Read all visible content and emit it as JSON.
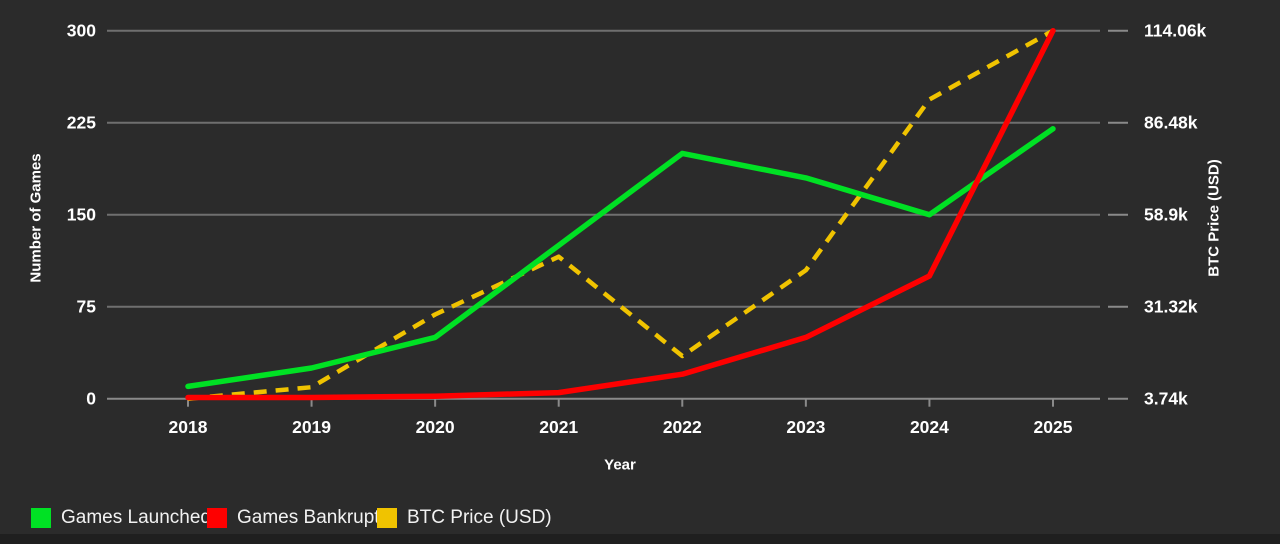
{
  "colors": {
    "background": "#2b2b2b",
    "bottom_strip": "#1f1f1f",
    "grid": "#6f6f6f",
    "axis_line": "#8a8a8a",
    "tick": "#8a8a8a",
    "text": "#ffffff",
    "legend_text": "#f2f2f2",
    "green": "#00e124",
    "red": "#fe0000",
    "gold": "#f0c300"
  },
  "chart_data": {
    "type": "line",
    "title": "",
    "x_categories": [
      "2018",
      "2019",
      "2020",
      "2021",
      "2022",
      "2023",
      "2024",
      "2025"
    ],
    "series": [
      {
        "name": "Games Launched",
        "axis": "left",
        "color": "#00e124",
        "line_style": "solid",
        "values": [
          10,
          25,
          50,
          125,
          200,
          180,
          150,
          220
        ]
      },
      {
        "name": "Games Bankrupt",
        "axis": "left",
        "color": "#fe0000",
        "line_style": "solid",
        "values": [
          1,
          1,
          2,
          5,
          20,
          50,
          100,
          300
        ]
      },
      {
        "name": "BTC Price (USD)",
        "axis": "right",
        "color": "#f0c300",
        "line_style": "dashed",
        "unit": "thousand USD",
        "values": [
          3.74,
          7.19,
          28.99,
          46.31,
          16.55,
          42.27,
          93.43,
          114.06
        ]
      }
    ],
    "left_axis": {
      "title": "Number of Games",
      "ticks": [
        0,
        75,
        150,
        225,
        300
      ],
      "tick_labels": [
        "0",
        "75",
        "150",
        "225",
        "300"
      ],
      "range": [
        0,
        300
      ]
    },
    "right_axis": {
      "title": "BTC Price (USD)",
      "tick_labels": [
        "3.74k",
        "31.32k",
        "58.9k",
        "86.48k",
        "114.06k"
      ],
      "range_thousands": [
        3.74,
        114.06
      ]
    },
    "x_axis": {
      "title": "Year"
    },
    "grid": true,
    "legend_position": "bottom-left",
    "legend": [
      "Games Launched",
      "Games Bankrupt",
      "BTC Price (USD)"
    ]
  }
}
